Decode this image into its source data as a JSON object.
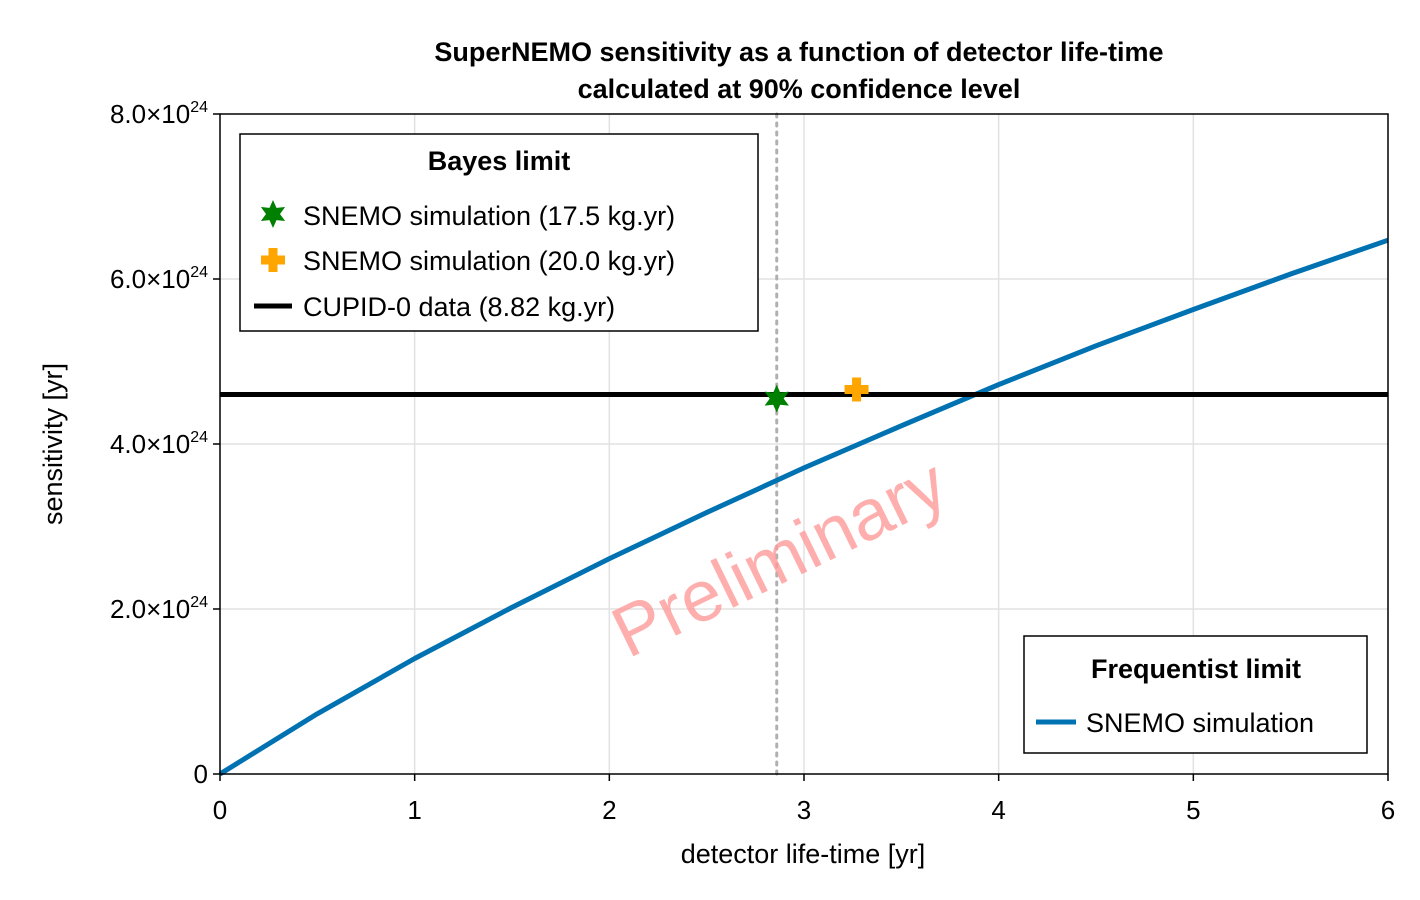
{
  "chart_data": {
    "type": "line",
    "title_lines": [
      "SuperNEMO sensitivity as a function of detector life-time",
      "calculated at 90% confidence level"
    ],
    "xlabel": "detector life-time [yr]",
    "ylabel": "sensitivity [yr]",
    "xlim": [
      0,
      6
    ],
    "ylim": [
      0,
      8e+24
    ],
    "x_ticks": [
      {
        "value": 0,
        "label": "0"
      },
      {
        "value": 1,
        "label": "1"
      },
      {
        "value": 2,
        "label": "2"
      },
      {
        "value": 3,
        "label": "3"
      },
      {
        "value": 4,
        "label": "4"
      },
      {
        "value": 5,
        "label": "5"
      },
      {
        "value": 6,
        "label": "6"
      }
    ],
    "y_ticks": [
      {
        "value": 0,
        "mantissa": "0",
        "exponent": ""
      },
      {
        "value": 2e+24,
        "mantissa": "2.0×10",
        "exponent": "24"
      },
      {
        "value": 4e+24,
        "mantissa": "4.0×10",
        "exponent": "24"
      },
      {
        "value": 6e+24,
        "mantissa": "6.0×10",
        "exponent": "24"
      },
      {
        "value": 8e+24,
        "mantissa": "8.0×10",
        "exponent": "24"
      }
    ],
    "grid": true,
    "series": [
      {
        "name": "SNEMO simulation",
        "kind": "line",
        "color": "#0072b2",
        "x": [
          0,
          0.5,
          1,
          1.5,
          2,
          2.5,
          3,
          3.5,
          4,
          4.5,
          5,
          5.5,
          6
        ],
        "y": [
          0,
          7.3e+23,
          1.4e+24,
          2.02e+24,
          2.61e+24,
          3.17e+24,
          3.71e+24,
          4.22e+24,
          4.72e+24,
          5.19e+24,
          5.63e+24,
          6.06e+24,
          6.47e+24
        ]
      },
      {
        "name": "CUPID-0 data (8.82 kg.yr)",
        "kind": "hline",
        "color": "#000000",
        "y": 4.6e+24
      },
      {
        "name": "SNEMO simulation (17.5 kg.yr)",
        "kind": "marker",
        "marker": "star",
        "color": "#008000",
        "x": [
          2.86
        ],
        "y": [
          4.55e+24
        ]
      },
      {
        "name": "SNEMO simulation (20.0 kg.yr)",
        "kind": "marker",
        "marker": "cross",
        "color": "#ffa500",
        "x": [
          3.27
        ],
        "y": [
          4.66e+24
        ]
      }
    ],
    "vline": {
      "x": 2.86,
      "color": "#b0b0b0",
      "style": "dotted"
    },
    "legends": [
      {
        "title": "Bayes limit",
        "placement": "top-left",
        "entries": [
          {
            "label": "SNEMO simulation (17.5 kg.yr)",
            "marker": "star",
            "color": "#008000"
          },
          {
            "label": "SNEMO simulation (20.0 kg.yr)",
            "marker": "cross",
            "color": "#ffa500"
          },
          {
            "label": "CUPID-0 data (8.82 kg.yr)",
            "marker": "line",
            "color": "#000000"
          }
        ]
      },
      {
        "title": "Frequentist limit",
        "placement": "bottom-right",
        "entries": [
          {
            "label": "SNEMO simulation",
            "marker": "line",
            "color": "#0072b2"
          }
        ]
      }
    ],
    "annotations": [
      {
        "text": "Preliminary",
        "color": "#ff9a9a"
      }
    ]
  }
}
